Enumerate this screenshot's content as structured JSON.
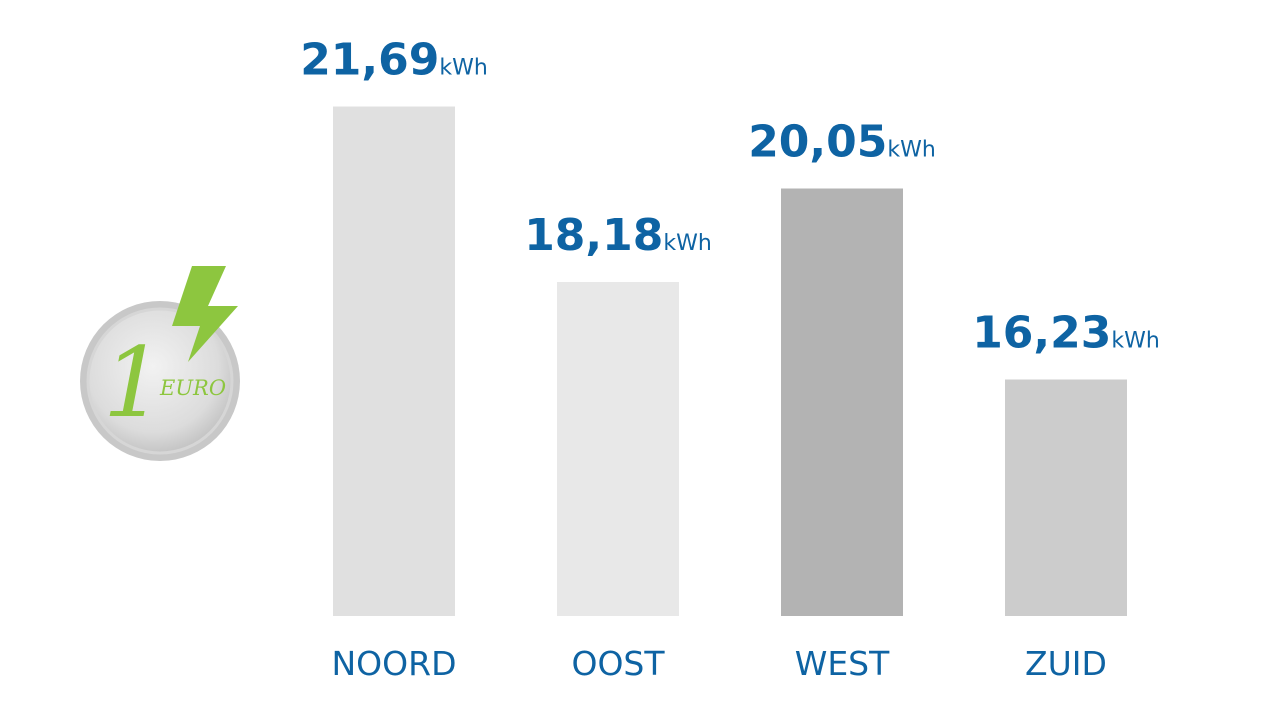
{
  "chart_data": {
    "type": "bar",
    "categories": [
      "NOORD",
      "OOST",
      "WEST",
      "ZUID"
    ],
    "values": [
      21.69,
      18.18,
      20.05,
      16.23
    ],
    "value_labels": [
      "21,69",
      "18,18",
      "20,05",
      "16,23"
    ],
    "unit": "kWh",
    "colors": [
      "#e0e0e0",
      "#e8e8e8",
      "#b3b3b3",
      "#cccccc"
    ],
    "label_color": "#0e63a3",
    "ylim": [
      11.5,
      21.7
    ]
  },
  "icon": {
    "numeral": "1",
    "label": "EURO"
  }
}
